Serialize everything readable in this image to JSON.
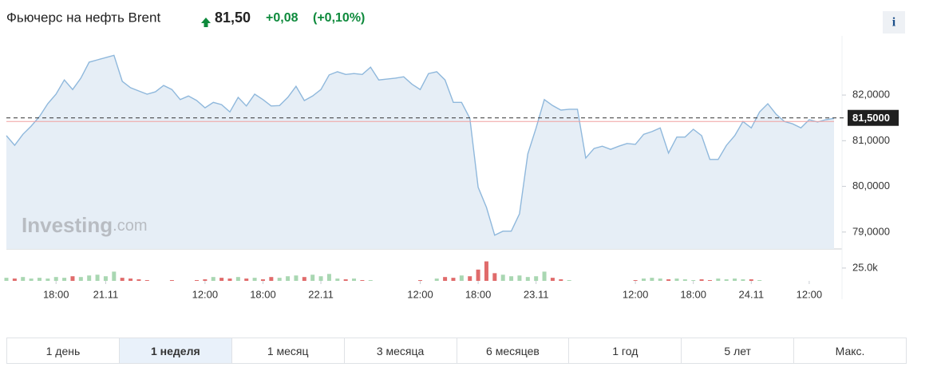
{
  "header": {
    "title": "Фьючерс на нефть Brent",
    "price": "81,50",
    "change": "+0,08",
    "change_pct": "(+0,10%)",
    "info_icon": "i"
  },
  "watermark": {
    "brand": "Investing",
    "suffix": ".com"
  },
  "chart_data": {
    "type": "area",
    "color": "#8fb8dc",
    "fill": "#e6eef6",
    "categories": [
      null,
      null,
      null,
      null,
      null,
      null,
      "18:00",
      null,
      null,
      null,
      null,
      null,
      "21.11",
      null,
      null,
      null,
      null,
      null,
      null,
      null,
      null,
      null,
      null,
      null,
      "12:00",
      null,
      null,
      null,
      null,
      null,
      null,
      "18:00",
      null,
      null,
      null,
      null,
      null,
      null,
      "22.11",
      null,
      null,
      null,
      null,
      null,
      null,
      null,
      null,
      null,
      null,
      null,
      "12:00",
      null,
      null,
      null,
      null,
      null,
      null,
      "18:00",
      null,
      null,
      null,
      null,
      null,
      null,
      "23.11",
      null,
      null,
      null,
      null,
      null,
      null,
      null,
      null,
      null,
      null,
      null,
      "12:00",
      null,
      null,
      null,
      null,
      null,
      null,
      "18:00",
      null,
      null,
      null,
      null,
      null,
      null,
      "24.11",
      null,
      null,
      null,
      null,
      null,
      null,
      "12:00",
      null,
      null,
      null
    ],
    "values": [
      81.11,
      80.9,
      81.14,
      81.32,
      81.53,
      81.81,
      82.02,
      82.33,
      82.12,
      82.37,
      82.72,
      82.77,
      82.82,
      82.87,
      82.3,
      82.16,
      82.09,
      82.02,
      82.07,
      82.21,
      82.12,
      81.9,
      81.98,
      81.88,
      81.72,
      81.84,
      81.79,
      81.63,
      81.95,
      81.76,
      82.02,
      81.9,
      81.76,
      81.77,
      81.95,
      82.19,
      81.88,
      81.98,
      82.12,
      82.44,
      82.51,
      82.45,
      82.47,
      82.45,
      82.61,
      82.33,
      82.35,
      82.37,
      82.4,
      82.24,
      82.12,
      82.47,
      82.51,
      82.33,
      81.84,
      81.84,
      81.49,
      79.98,
      79.54,
      78.93,
      79.02,
      79.02,
      79.4,
      80.71,
      81.28,
      81.9,
      81.77,
      81.67,
      81.69,
      81.69,
      80.62,
      80.83,
      80.88,
      80.81,
      80.88,
      80.94,
      80.92,
      81.14,
      81.2,
      81.28,
      80.73,
      81.08,
      81.08,
      81.25,
      81.11,
      80.59,
      80.59,
      80.9,
      81.11,
      81.42,
      81.28,
      81.63,
      81.81,
      81.58,
      81.42,
      81.37,
      81.28,
      81.46,
      81.41,
      81.46,
      81.49
    ],
    "ylim": [
      78.63,
      83.12
    ],
    "yticks": [
      {
        "value": 79,
        "label": "79,0000"
      },
      {
        "value": 80,
        "label": "80,0000"
      },
      {
        "value": 81,
        "label": "81,0000"
      },
      {
        "value": 82,
        "label": "82,0000"
      }
    ],
    "last_price": {
      "value": 81.5,
      "label": "81,5000"
    },
    "reference_line": 81.42,
    "volume_values": [
      6000,
      4500,
      7500,
      4500,
      6000,
      4500,
      7500,
      6000,
      9000,
      7500,
      10500,
      12000,
      9000,
      18000,
      6000,
      4500,
      3000,
      1500,
      0,
      0,
      1500,
      0,
      0,
      1500,
      3000,
      7500,
      6000,
      4500,
      7500,
      4500,
      6000,
      3000,
      7500,
      6000,
      9000,
      10500,
      7500,
      12000,
      9000,
      13500,
      4500,
      3000,
      4500,
      1500,
      1500,
      0,
      0,
      0,
      0,
      0,
      1500,
      0,
      4500,
      7500,
      6000,
      10500,
      9000,
      22000,
      38000,
      15000,
      12000,
      9000,
      10500,
      7500,
      9000,
      18000,
      6000,
      3000,
      1500,
      0,
      0,
      0,
      0,
      0,
      0,
      0,
      1500,
      4500,
      6000,
      4500,
      3000,
      4500,
      3000,
      1500,
      3000,
      1500,
      4500,
      3000,
      4500,
      3000,
      3000,
      1500,
      0,
      0,
      0,
      0,
      0,
      0,
      0,
      0,
      0
    ],
    "volume_ylim": [
      0,
      56000
    ],
    "volume_yticks": [
      {
        "value": 25000,
        "label": "25.0k"
      }
    ],
    "up_color": "#a9d7b2",
    "down_color": "#e06b6b"
  },
  "ranges": {
    "selected": 1,
    "labels": [
      "1 день",
      "1 неделя",
      "1 месяц",
      "3 месяца",
      "6 месяцев",
      "1 год",
      "5 лет",
      "Макс."
    ]
  }
}
